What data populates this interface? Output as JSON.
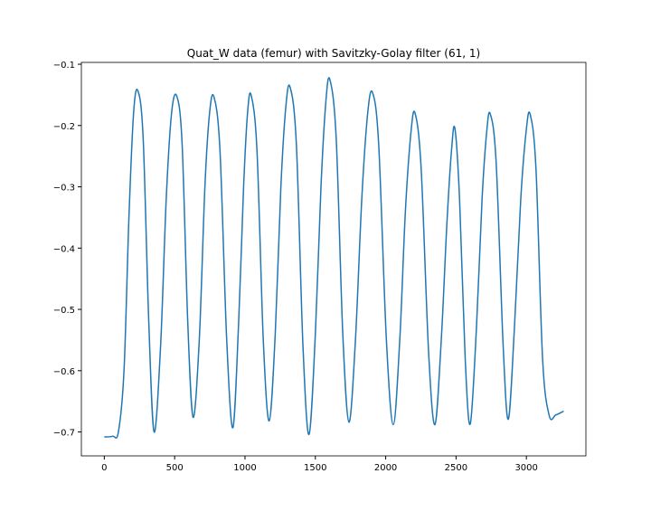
{
  "chart_data": {
    "type": "line",
    "title": "Quat_W data (femur) with Savitzky-Golay filter (61, 1)",
    "x": [
      0,
      60,
      100,
      140,
      175,
      208,
      238,
      276,
      316,
      354,
      400,
      440,
      478,
      515,
      553,
      593,
      631,
      675,
      715,
      748,
      779,
      822,
      870,
      914,
      955,
      990,
      1018,
      1043,
      1085,
      1130,
      1172,
      1215,
      1255,
      1290,
      1320,
      1365,
      1412,
      1455,
      1500,
      1540,
      1575,
      1603,
      1648,
      1695,
      1739,
      1785,
      1830,
      1872,
      1906,
      1950,
      2005,
      2054,
      2100,
      2140,
      2180,
      2209,
      2252,
      2305,
      2350,
      2395,
      2435,
      2468,
      2492,
      2525,
      2565,
      2601,
      2645,
      2685,
      2718,
      2743,
      2785,
      2835,
      2872,
      2915,
      2960,
      2998,
      3026,
      3068,
      3115,
      3162,
      3210,
      3265
    ],
    "series": [
      {
        "name": "Quat_W",
        "color": "#1f77b4",
        "values": [
          -0.708,
          -0.707,
          -0.7,
          -0.6,
          -0.35,
          -0.18,
          -0.143,
          -0.22,
          -0.52,
          -0.7,
          -0.56,
          -0.32,
          -0.18,
          -0.152,
          -0.23,
          -0.52,
          -0.676,
          -0.55,
          -0.3,
          -0.18,
          -0.153,
          -0.24,
          -0.55,
          -0.693,
          -0.52,
          -0.3,
          -0.18,
          -0.15,
          -0.24,
          -0.55,
          -0.682,
          -0.54,
          -0.3,
          -0.17,
          -0.137,
          -0.23,
          -0.56,
          -0.704,
          -0.54,
          -0.3,
          -0.16,
          -0.125,
          -0.22,
          -0.54,
          -0.684,
          -0.55,
          -0.32,
          -0.18,
          -0.146,
          -0.23,
          -0.55,
          -0.688,
          -0.55,
          -0.34,
          -0.21,
          -0.18,
          -0.27,
          -0.57,
          -0.688,
          -0.55,
          -0.36,
          -0.24,
          -0.205,
          -0.32,
          -0.58,
          -0.687,
          -0.53,
          -0.32,
          -0.21,
          -0.181,
          -0.26,
          -0.56,
          -0.679,
          -0.53,
          -0.32,
          -0.21,
          -0.181,
          -0.27,
          -0.58,
          -0.673,
          -0.672,
          -0.666
        ]
      }
    ],
    "xlim": [
      -163,
      3423
    ],
    "ylim": [
      -0.739,
      -0.097
    ],
    "xticks": [
      0,
      500,
      1000,
      1500,
      2000,
      2500,
      3000
    ],
    "yticks": [
      {
        "value": -0.7,
        "label": "−0.7"
      },
      {
        "value": -0.6,
        "label": "−0.6"
      },
      {
        "value": -0.5,
        "label": "−0.5"
      },
      {
        "value": -0.4,
        "label": "−0.4"
      },
      {
        "value": -0.3,
        "label": "−0.3"
      },
      {
        "value": -0.2,
        "label": "−0.2"
      },
      {
        "value": -0.1,
        "label": "−0.1"
      }
    ],
    "grid": false
  }
}
